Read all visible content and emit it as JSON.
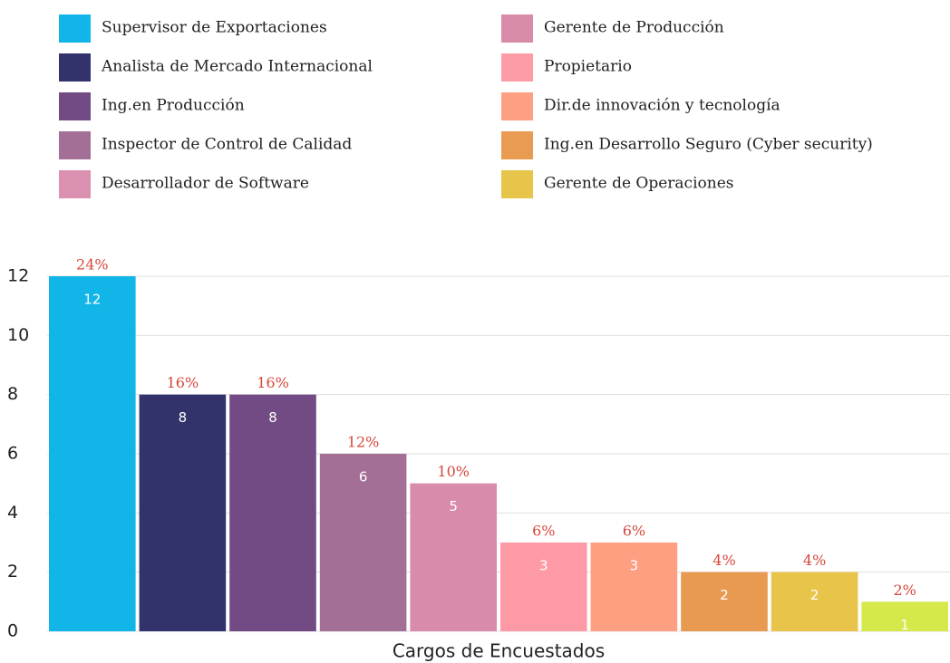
{
  "chart_data": {
    "type": "bar",
    "categories": [
      "Supervisor de Exportaciones",
      "Analista de Mercado Internacional",
      "Ing.en Producción",
      "Inspector de Control de Calidad",
      "Desarrollador de Software",
      "Gerente de Producción",
      "Propietario",
      "Dir.de innovación y tecnología",
      "Ing.en Desarrollo Seguro (Cyber security)",
      "Gerente de Operaciones"
    ],
    "values": [
      12,
      8,
      8,
      6,
      5,
      3,
      3,
      2,
      2,
      1
    ],
    "percent_labels": [
      "24%",
      "16%",
      "16%",
      "12%",
      "10%",
      "6%",
      "6%",
      "4%",
      "4%",
      "2%"
    ],
    "colors": [
      "#12b5e8",
      "#31336a",
      "#724b85",
      "#a46f96",
      "#d98bab",
      "#fd9aa6",
      "#fe9f82",
      "#e99a51",
      "#e8c44b",
      "#d5e84c"
    ],
    "legend_colors": [
      "#12b5e8",
      "#31336a",
      "#724b85",
      "#a46f96",
      "#db90b0",
      "#d88aa9",
      "#fd9ca7",
      "#fd9f83",
      "#e99b52",
      "#e6c54a"
    ],
    "xlabel": "Cargos de Encuestados",
    "ylim": [
      0,
      12
    ],
    "yticks": [
      0,
      2,
      4,
      6,
      8,
      10,
      12
    ],
    "grid": true
  }
}
